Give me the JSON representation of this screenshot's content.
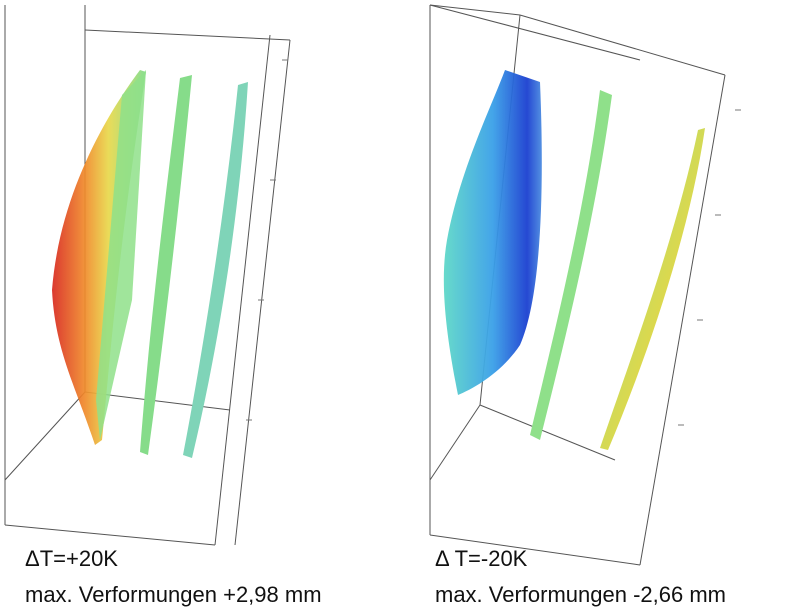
{
  "panels": [
    {
      "title": "ΔT=+20K",
      "caption": "max. Verformungen +2,98 mm"
    },
    {
      "title": "Δ T=-20K",
      "caption": "max. Verformungen -2,66 mm"
    }
  ]
}
